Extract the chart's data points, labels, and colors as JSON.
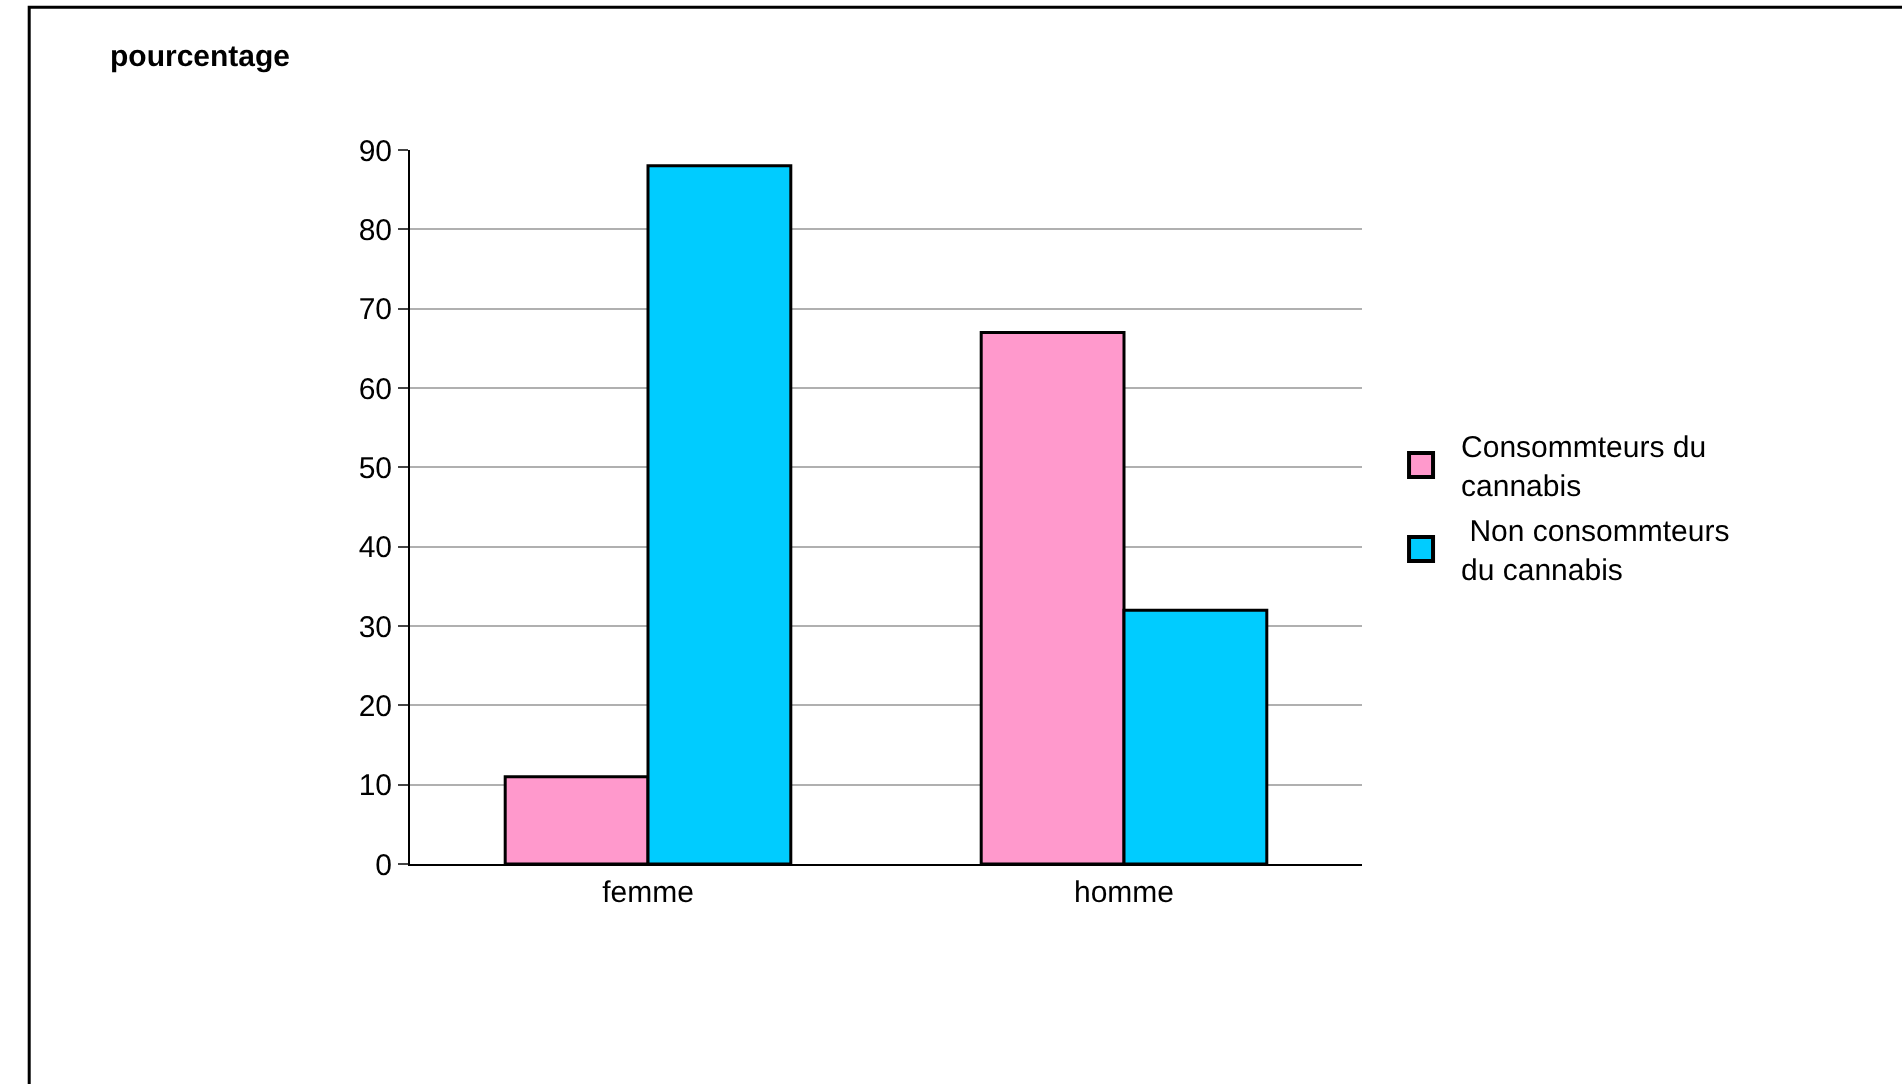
{
  "chart_data": {
    "type": "bar",
    "ylabel": "pourcentage",
    "categories": [
      "femme",
      "homme"
    ],
    "series": [
      {
        "name": "Consommteurs du cannabis",
        "color": "#ff99cc",
        "values": [
          11,
          67
        ]
      },
      {
        "name": " Non consommteurs du cannabis",
        "color": "#00ccff",
        "values": [
          88,
          32
        ]
      }
    ],
    "ylim": [
      0,
      90
    ],
    "yticks": [
      0,
      10,
      20,
      30,
      40,
      50,
      60,
      70,
      80,
      90
    ],
    "grid": "y",
    "legend": "right"
  }
}
